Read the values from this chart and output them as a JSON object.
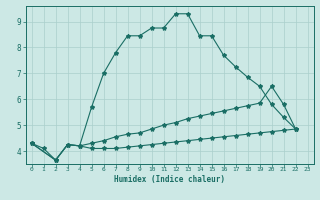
{
  "xlabel": "Humidex (Indice chaleur)",
  "background_color": "#cce8e5",
  "grid_color": "#aacfcc",
  "line_color": "#1a6e65",
  "xlim": [
    -0.5,
    23.5
  ],
  "ylim": [
    3.5,
    9.6
  ],
  "xticks": [
    0,
    1,
    2,
    3,
    4,
    5,
    6,
    7,
    8,
    9,
    10,
    11,
    12,
    13,
    14,
    15,
    16,
    17,
    18,
    19,
    20,
    21,
    22,
    23
  ],
  "yticks": [
    4,
    5,
    6,
    7,
    8,
    9
  ],
  "line1_x": [
    0,
    1,
    2,
    3,
    4,
    5,
    6,
    7,
    8,
    9,
    10,
    11,
    12,
    13,
    14,
    15,
    16,
    17,
    18,
    19,
    20,
    21,
    22
  ],
  "line1_y": [
    4.3,
    4.1,
    3.65,
    4.25,
    4.2,
    5.7,
    7.0,
    7.8,
    8.45,
    8.45,
    8.75,
    8.75,
    9.3,
    9.3,
    8.45,
    8.45,
    7.7,
    7.25,
    6.85,
    6.5,
    5.8,
    5.3,
    4.85
  ],
  "line2_x": [
    0,
    2,
    3,
    4,
    5,
    6,
    7,
    8,
    9,
    10,
    11,
    12,
    13,
    14,
    15,
    16,
    17,
    18,
    19,
    20,
    21,
    22
  ],
  "line2_y": [
    4.3,
    3.65,
    4.25,
    4.2,
    4.3,
    4.4,
    4.55,
    4.65,
    4.7,
    4.85,
    5.0,
    5.1,
    5.25,
    5.35,
    5.45,
    5.55,
    5.65,
    5.75,
    5.85,
    6.5,
    5.8,
    4.85
  ],
  "line3_x": [
    0,
    2,
    3,
    4,
    5,
    6,
    7,
    8,
    9,
    10,
    11,
    12,
    13,
    14,
    15,
    16,
    17,
    18,
    19,
    20,
    21,
    22
  ],
  "line3_y": [
    4.3,
    3.65,
    4.25,
    4.2,
    4.1,
    4.1,
    4.1,
    4.15,
    4.2,
    4.25,
    4.3,
    4.35,
    4.4,
    4.45,
    4.5,
    4.55,
    4.6,
    4.65,
    4.7,
    4.75,
    4.8,
    4.85
  ]
}
